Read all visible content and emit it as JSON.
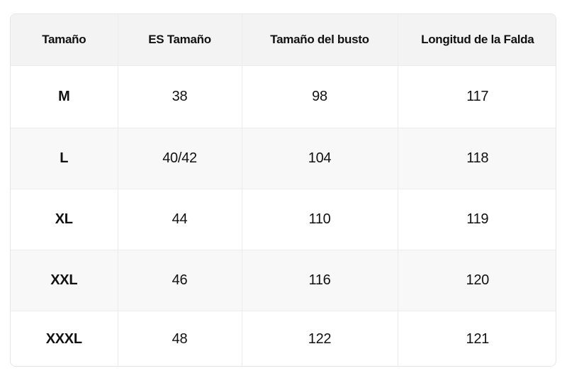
{
  "table": {
    "header": [
      "Tamaño",
      "ES Tamaño",
      "Tamaño del busto",
      "Longitud de la Falda"
    ],
    "rows": [
      [
        "M",
        "38",
        "98",
        "117"
      ],
      [
        "L",
        "40/42",
        "104",
        "118"
      ],
      [
        "XL",
        "44",
        "110",
        "119"
      ],
      [
        "XXL",
        "46",
        "116",
        "120"
      ],
      [
        "XXXL",
        "48",
        "122",
        "121"
      ]
    ]
  }
}
